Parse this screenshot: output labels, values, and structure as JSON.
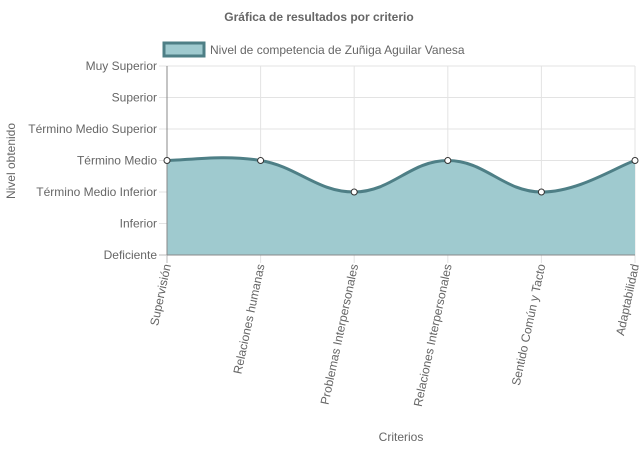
{
  "chart_data": {
    "type": "area",
    "title": "Gráfica de resultados por criterio",
    "xlabel": "Criterios",
    "ylabel": "Nivel obtenido",
    "y_levels": [
      "Deficiente",
      "Inferior",
      "Término Medio Inferior",
      "Término Medio",
      "Término Medio Superior",
      "Superior",
      "Muy Superior"
    ],
    "ylim": [
      0,
      6
    ],
    "categories": [
      "Supervisión",
      "Relaciones humanas",
      "Problemas Interpersonales",
      "Relaciones Interpersonales",
      "Sentido Común y Tacto",
      "Adaptabilidad"
    ],
    "series": [
      {
        "name": "Nivel de competencia de Zuñiga Aguilar Vanesa",
        "values": [
          3,
          3,
          2,
          3,
          2,
          3
        ]
      }
    ],
    "legend_position": "top",
    "grid": true,
    "colors": {
      "fill": "#9fcacf",
      "line": "#4e7f86",
      "grid": "#e3e3e3",
      "text": "#666666"
    }
  }
}
